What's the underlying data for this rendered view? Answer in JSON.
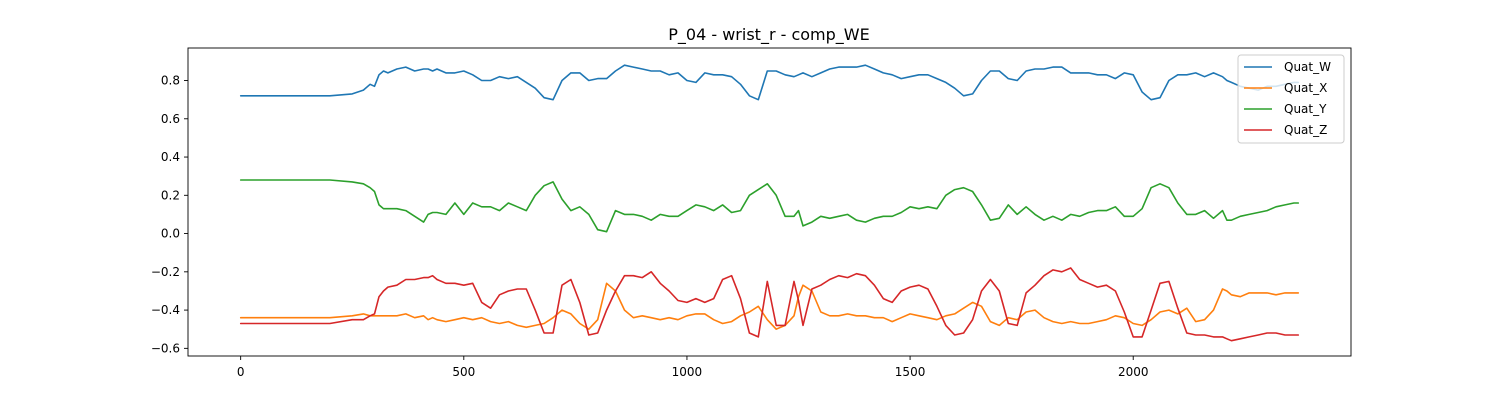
{
  "chart_data": {
    "type": "line",
    "title": "P_04 - wrist_r - comp_WE",
    "xlabel": "",
    "ylabel": "",
    "xlim": [
      -118,
      2488
    ],
    "ylim": [
      -0.64,
      0.97
    ],
    "xticks": [
      0,
      500,
      1000,
      1500,
      2000
    ],
    "yticks": [
      -0.6,
      -0.4,
      -0.2,
      0.0,
      0.2,
      0.4,
      0.6,
      0.8
    ],
    "xtick_labels": [
      "0",
      "500",
      "1000",
      "1500",
      "2000"
    ],
    "ytick_labels": [
      "−0.6",
      "−0.4",
      "−0.2",
      "0.0",
      "0.2",
      "0.4",
      "0.6",
      "0.8"
    ],
    "grid": false,
    "legend_position": "top-right",
    "x": [
      0,
      50,
      100,
      150,
      200,
      250,
      275,
      290,
      300,
      310,
      320,
      330,
      350,
      370,
      390,
      410,
      420,
      430,
      440,
      460,
      480,
      500,
      520,
      540,
      560,
      580,
      600,
      620,
      640,
      660,
      680,
      700,
      720,
      740,
      760,
      780,
      800,
      820,
      840,
      860,
      880,
      900,
      920,
      940,
      960,
      980,
      1000,
      1020,
      1040,
      1060,
      1080,
      1100,
      1120,
      1140,
      1160,
      1180,
      1200,
      1220,
      1240,
      1250,
      1260,
      1280,
      1300,
      1320,
      1340,
      1360,
      1380,
      1400,
      1420,
      1440,
      1460,
      1480,
      1500,
      1520,
      1540,
      1560,
      1580,
      1600,
      1620,
      1640,
      1660,
      1680,
      1700,
      1720,
      1740,
      1760,
      1780,
      1800,
      1820,
      1840,
      1860,
      1880,
      1900,
      1920,
      1940,
      1960,
      1980,
      2000,
      2020,
      2040,
      2060,
      2080,
      2100,
      2120,
      2140,
      2160,
      2180,
      2200,
      2210,
      2220,
      2240,
      2260,
      2280,
      2300,
      2320,
      2340,
      2360,
      2370
    ],
    "series": [
      {
        "name": "Quat_W",
        "color": "#1f77b4",
        "values": [
          0.72,
          0.72,
          0.72,
          0.72,
          0.72,
          0.73,
          0.75,
          0.78,
          0.77,
          0.83,
          0.85,
          0.84,
          0.86,
          0.87,
          0.85,
          0.86,
          0.86,
          0.85,
          0.86,
          0.84,
          0.84,
          0.85,
          0.83,
          0.8,
          0.8,
          0.82,
          0.81,
          0.82,
          0.79,
          0.76,
          0.71,
          0.7,
          0.8,
          0.84,
          0.84,
          0.8,
          0.81,
          0.81,
          0.85,
          0.88,
          0.87,
          0.86,
          0.85,
          0.85,
          0.83,
          0.84,
          0.8,
          0.79,
          0.84,
          0.83,
          0.83,
          0.82,
          0.78,
          0.72,
          0.7,
          0.85,
          0.85,
          0.83,
          0.82,
          0.83,
          0.84,
          0.82,
          0.84,
          0.86,
          0.87,
          0.87,
          0.87,
          0.88,
          0.86,
          0.84,
          0.83,
          0.81,
          0.82,
          0.83,
          0.83,
          0.81,
          0.79,
          0.76,
          0.72,
          0.73,
          0.8,
          0.85,
          0.85,
          0.81,
          0.8,
          0.85,
          0.86,
          0.86,
          0.87,
          0.87,
          0.84,
          0.84,
          0.84,
          0.83,
          0.83,
          0.81,
          0.84,
          0.83,
          0.74,
          0.7,
          0.71,
          0.8,
          0.83,
          0.83,
          0.84,
          0.82,
          0.84,
          0.82,
          0.8,
          0.79,
          0.77,
          0.76,
          0.75,
          0.77,
          0.77,
          0.78,
          0.79,
          0.79
        ]
      },
      {
        "name": "Quat_X",
        "color": "#ff7f0e",
        "values": [
          -0.44,
          -0.44,
          -0.44,
          -0.44,
          -0.44,
          -0.43,
          -0.42,
          -0.43,
          -0.43,
          -0.43,
          -0.43,
          -0.43,
          -0.43,
          -0.42,
          -0.44,
          -0.43,
          -0.45,
          -0.44,
          -0.45,
          -0.46,
          -0.45,
          -0.44,
          -0.45,
          -0.44,
          -0.46,
          -0.47,
          -0.46,
          -0.48,
          -0.49,
          -0.48,
          -0.47,
          -0.44,
          -0.4,
          -0.42,
          -0.47,
          -0.5,
          -0.45,
          -0.26,
          -0.3,
          -0.4,
          -0.44,
          -0.43,
          -0.44,
          -0.45,
          -0.44,
          -0.45,
          -0.43,
          -0.42,
          -0.42,
          -0.45,
          -0.47,
          -0.46,
          -0.43,
          -0.41,
          -0.38,
          -0.45,
          -0.5,
          -0.48,
          -0.43,
          -0.33,
          -0.27,
          -0.3,
          -0.41,
          -0.43,
          -0.43,
          -0.42,
          -0.43,
          -0.43,
          -0.44,
          -0.44,
          -0.46,
          -0.44,
          -0.42,
          -0.43,
          -0.44,
          -0.45,
          -0.43,
          -0.42,
          -0.39,
          -0.36,
          -0.38,
          -0.46,
          -0.48,
          -0.44,
          -0.45,
          -0.41,
          -0.4,
          -0.44,
          -0.46,
          -0.47,
          -0.46,
          -0.47,
          -0.47,
          -0.46,
          -0.45,
          -0.43,
          -0.44,
          -0.47,
          -0.48,
          -0.45,
          -0.41,
          -0.4,
          -0.42,
          -0.39,
          -0.46,
          -0.45,
          -0.4,
          -0.29,
          -0.3,
          -0.32,
          -0.33,
          -0.31,
          -0.31,
          -0.31,
          -0.32,
          -0.31,
          -0.31,
          -0.31
        ]
      },
      {
        "name": "Quat_Y",
        "color": "#2ca02c",
        "values": [
          0.28,
          0.28,
          0.28,
          0.28,
          0.28,
          0.27,
          0.26,
          0.24,
          0.22,
          0.15,
          0.13,
          0.13,
          0.13,
          0.12,
          0.09,
          0.06,
          0.1,
          0.11,
          0.11,
          0.1,
          0.16,
          0.1,
          0.16,
          0.14,
          0.14,
          0.12,
          0.16,
          0.14,
          0.12,
          0.2,
          0.25,
          0.27,
          0.18,
          0.12,
          0.14,
          0.1,
          0.02,
          0.01,
          0.12,
          0.1,
          0.1,
          0.09,
          0.07,
          0.1,
          0.09,
          0.09,
          0.12,
          0.15,
          0.14,
          0.12,
          0.15,
          0.11,
          0.12,
          0.2,
          0.23,
          0.26,
          0.2,
          0.09,
          0.09,
          0.12,
          0.04,
          0.06,
          0.09,
          0.08,
          0.09,
          0.1,
          0.07,
          0.06,
          0.08,
          0.09,
          0.09,
          0.11,
          0.14,
          0.13,
          0.14,
          0.13,
          0.2,
          0.23,
          0.24,
          0.22,
          0.15,
          0.07,
          0.08,
          0.15,
          0.1,
          0.14,
          0.1,
          0.07,
          0.09,
          0.07,
          0.1,
          0.09,
          0.11,
          0.12,
          0.12,
          0.14,
          0.09,
          0.09,
          0.13,
          0.24,
          0.26,
          0.24,
          0.16,
          0.1,
          0.1,
          0.12,
          0.08,
          0.12,
          0.07,
          0.07,
          0.09,
          0.1,
          0.11,
          0.12,
          0.14,
          0.15,
          0.16,
          0.16
        ]
      },
      {
        "name": "Quat_Z",
        "color": "#d62728",
        "values": [
          -0.47,
          -0.47,
          -0.47,
          -0.47,
          -0.47,
          -0.45,
          -0.45,
          -0.43,
          -0.42,
          -0.33,
          -0.3,
          -0.28,
          -0.27,
          -0.24,
          -0.24,
          -0.23,
          -0.23,
          -0.22,
          -0.24,
          -0.26,
          -0.26,
          -0.27,
          -0.26,
          -0.36,
          -0.39,
          -0.32,
          -0.3,
          -0.29,
          -0.29,
          -0.4,
          -0.52,
          -0.52,
          -0.27,
          -0.24,
          -0.36,
          -0.53,
          -0.52,
          -0.4,
          -0.3,
          -0.22,
          -0.22,
          -0.23,
          -0.2,
          -0.26,
          -0.3,
          -0.35,
          -0.36,
          -0.34,
          -0.36,
          -0.34,
          -0.24,
          -0.22,
          -0.34,
          -0.52,
          -0.54,
          -0.25,
          -0.48,
          -0.48,
          -0.25,
          -0.35,
          -0.48,
          -0.29,
          -0.27,
          -0.24,
          -0.22,
          -0.23,
          -0.21,
          -0.22,
          -0.27,
          -0.34,
          -0.36,
          -0.3,
          -0.28,
          -0.27,
          -0.29,
          -0.38,
          -0.48,
          -0.53,
          -0.52,
          -0.45,
          -0.3,
          -0.24,
          -0.3,
          -0.47,
          -0.48,
          -0.31,
          -0.27,
          -0.22,
          -0.19,
          -0.2,
          -0.18,
          -0.24,
          -0.26,
          -0.28,
          -0.27,
          -0.3,
          -0.41,
          -0.54,
          -0.54,
          -0.4,
          -0.26,
          -0.25,
          -0.39,
          -0.52,
          -0.53,
          -0.53,
          -0.54,
          -0.54,
          -0.55,
          -0.56,
          -0.55,
          -0.54,
          -0.53,
          -0.52,
          -0.52,
          -0.53,
          -0.53,
          -0.53
        ]
      }
    ]
  }
}
